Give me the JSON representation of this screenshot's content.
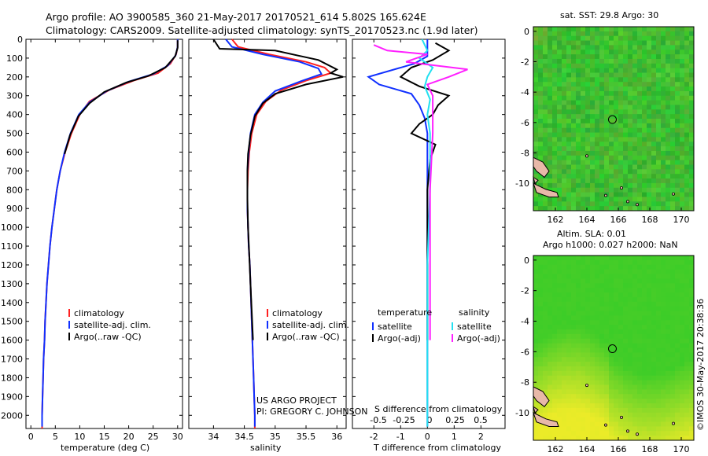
{
  "header": {
    "line1": "Argo profile: AO 3900585_360 21-May-2017 20170521_614 5.802S 165.624E",
    "line2": "Climatology: CARS2009. Satellite-adjusted climatology: synTS_20170523.nc (1.9d later)"
  },
  "colors": {
    "climatology": "#ff2020",
    "satellite": "#1030ff",
    "argo": "#000000",
    "sat_salinity": "#22e0f0",
    "argo_salinity": "#ff20ff",
    "land": "#e8b8a8"
  },
  "chart_data": [
    {
      "type": "line",
      "id": "temperature",
      "xlabel": "temperature (deg C)",
      "xlim": [
        -1,
        31
      ],
      "ylim": [
        2070,
        0
      ],
      "xticks": [
        0,
        5,
        10,
        15,
        20,
        25,
        30
      ],
      "yticks": [
        0,
        100,
        200,
        300,
        400,
        500,
        600,
        700,
        800,
        900,
        1000,
        1100,
        1200,
        1300,
        1400,
        1500,
        1600,
        1700,
        1800,
        1900,
        2000
      ],
      "legend": [
        "climatology",
        "satellite-adj. clim.",
        "Argo(..raw -QC)"
      ],
      "series": [
        {
          "name": "climatology",
          "color": "#ff2020",
          "points": [
            [
              30,
              0
            ],
            [
              30,
              40
            ],
            [
              29.7,
              80
            ],
            [
              28.5,
              130
            ],
            [
              26,
              180
            ],
            [
              21,
              220
            ],
            [
              16,
              270
            ],
            [
              12,
              330
            ],
            [
              10,
              400
            ],
            [
              8.3,
              500
            ],
            [
              7,
              600
            ],
            [
              6,
              700
            ],
            [
              5.3,
              800
            ],
            [
              4.8,
              900
            ],
            [
              4.3,
              1000
            ],
            [
              3.9,
              1100
            ],
            [
              3.6,
              1200
            ],
            [
              3.3,
              1300
            ],
            [
              3.1,
              1400
            ],
            [
              2.9,
              1500
            ],
            [
              2.8,
              1600
            ],
            [
              2.6,
              1700
            ],
            [
              2.5,
              1800
            ],
            [
              2.4,
              1900
            ],
            [
              2.3,
              2000
            ],
            [
              2.3,
              2070
            ]
          ]
        },
        {
          "name": "satellite-adj. clim.",
          "color": "#1030ff",
          "points": [
            [
              30,
              0
            ],
            [
              30,
              40
            ],
            [
              29.6,
              85
            ],
            [
              28,
              140
            ],
            [
              25,
              185
            ],
            [
              20,
              225
            ],
            [
              15.5,
              275
            ],
            [
              12,
              335
            ],
            [
              9.8,
              400
            ],
            [
              8.1,
              500
            ],
            [
              6.9,
              600
            ],
            [
              6,
              700
            ],
            [
              5.3,
              800
            ],
            [
              4.8,
              900
            ],
            [
              4.3,
              1000
            ],
            [
              3.9,
              1100
            ],
            [
              3.6,
              1200
            ],
            [
              3.3,
              1300
            ],
            [
              3.1,
              1400
            ],
            [
              2.9,
              1500
            ],
            [
              2.8,
              1600
            ],
            [
              2.6,
              1700
            ],
            [
              2.5,
              1800
            ],
            [
              2.4,
              1900
            ],
            [
              2.3,
              2000
            ],
            [
              2.3,
              2060
            ]
          ]
        },
        {
          "name": "Argo(..raw -QC)",
          "color": "#000000",
          "points": [
            [
              30,
              5
            ],
            [
              30,
              45
            ],
            [
              29.5,
              90
            ],
            [
              27.5,
              150
            ],
            [
              24,
              195
            ],
            [
              19.5,
              230
            ],
            [
              15,
              280
            ],
            [
              12,
              340
            ],
            [
              9.7,
              410
            ],
            [
              8,
              510
            ],
            [
              6.9,
              610
            ]
          ]
        }
      ]
    },
    {
      "type": "line",
      "id": "salinity",
      "xlabel": "salinity",
      "xlim": [
        33.6,
        36.15
      ],
      "ylim": [
        2070,
        0
      ],
      "xticks": [
        34,
        34.5,
        35,
        35.5,
        36
      ],
      "legend": [
        "climatology",
        "satellite-adj. clim.",
        "Argo(..raw -QC)"
      ],
      "footer_line1": "US ARGO PROJECT",
      "footer_line2": "PI: GREGORY C. JOHNSON",
      "series": [
        {
          "name": "climatology",
          "color": "#ff2020",
          "points": [
            [
              34.3,
              0
            ],
            [
              34.4,
              40
            ],
            [
              34.9,
              80
            ],
            [
              35.5,
              120
            ],
            [
              35.8,
              150
            ],
            [
              35.9,
              180
            ],
            [
              35.5,
              220
            ],
            [
              35.1,
              270
            ],
            [
              34.85,
              330
            ],
            [
              34.7,
              400
            ],
            [
              34.62,
              500
            ],
            [
              34.58,
              600
            ],
            [
              34.56,
              700
            ],
            [
              34.55,
              800
            ],
            [
              34.55,
              900
            ],
            [
              34.56,
              1000
            ],
            [
              34.57,
              1100
            ],
            [
              34.59,
              1200
            ],
            [
              34.6,
              1300
            ],
            [
              34.61,
              1400
            ],
            [
              34.62,
              1500
            ],
            [
              34.63,
              1600
            ],
            [
              34.64,
              1700
            ],
            [
              34.65,
              1800
            ],
            [
              34.66,
              1900
            ],
            [
              34.67,
              2000
            ],
            [
              34.67,
              2070
            ]
          ]
        },
        {
          "name": "satellite-adj. clim.",
          "color": "#1030ff",
          "points": [
            [
              34.2,
              0
            ],
            [
              34.3,
              40
            ],
            [
              34.8,
              80
            ],
            [
              35.4,
              120
            ],
            [
              35.7,
              155
            ],
            [
              35.75,
              185
            ],
            [
              35.4,
              225
            ],
            [
              35.0,
              275
            ],
            [
              34.8,
              335
            ],
            [
              34.67,
              400
            ],
            [
              34.6,
              500
            ],
            [
              34.57,
              600
            ],
            [
              34.55,
              700
            ],
            [
              34.55,
              800
            ],
            [
              34.55,
              900
            ],
            [
              34.56,
              1000
            ],
            [
              34.57,
              1100
            ],
            [
              34.59,
              1200
            ],
            [
              34.6,
              1300
            ],
            [
              34.61,
              1400
            ],
            [
              34.62,
              1500
            ],
            [
              34.63,
              1600
            ],
            [
              34.64,
              1700
            ],
            [
              34.65,
              1800
            ],
            [
              34.66,
              1900
            ],
            [
              34.67,
              2000
            ],
            [
              34.67,
              2060
            ]
          ]
        },
        {
          "name": "Argo(..raw -QC)",
          "color": "#000000",
          "points": [
            [
              34.0,
              0
            ],
            [
              34.1,
              50
            ],
            [
              35.0,
              60
            ],
            [
              35.7,
              110
            ],
            [
              36.0,
              160
            ],
            [
              35.9,
              180
            ],
            [
              36.1,
              200
            ],
            [
              35.5,
              240
            ],
            [
              35.0,
              290
            ],
            [
              34.8,
              340
            ],
            [
              34.67,
              410
            ],
            [
              34.6,
              510
            ],
            [
              34.56,
              610
            ],
            [
              34.55,
              700
            ],
            [
              34.55,
              850
            ],
            [
              34.56,
              1000
            ],
            [
              34.58,
              1150
            ],
            [
              34.6,
              1300
            ],
            [
              34.62,
              1450
            ],
            [
              34.64,
              1600
            ]
          ]
        }
      ]
    },
    {
      "type": "line",
      "id": "difference",
      "xlabel_top": "S difference from climatology",
      "xlabel": "T difference from climatology",
      "xlim": [
        -2.8,
        2.9
      ],
      "ylim": [
        2070,
        0
      ],
      "xticks": [
        -2,
        -1,
        0,
        1,
        2
      ],
      "xticks_top": [
        "-0.5",
        "-0.25",
        "0",
        "0.25",
        "0.5"
      ],
      "legend_temperature_title": "temperature",
      "legend_salinity_title": "salinity",
      "legend_temperature": [
        "satellite",
        "Argo(-adj)"
      ],
      "legend_salinity": [
        "satellite",
        "Argo(-adj)"
      ],
      "series": [
        {
          "name": "temperature satellite",
          "color": "#1030ff",
          "points": [
            [
              0,
              0
            ],
            [
              0,
              90
            ],
            [
              -0.5,
              130
            ],
            [
              -2.2,
              200
            ],
            [
              -1.8,
              240
            ],
            [
              -0.6,
              290
            ],
            [
              -0.3,
              350
            ],
            [
              -0.1,
              420
            ],
            [
              0,
              500
            ],
            [
              0,
              800
            ],
            [
              0,
              2060
            ]
          ]
        },
        {
          "name": "temperature Argo(-adj)",
          "color": "#000000",
          "points": [
            [
              0.3,
              20
            ],
            [
              0.8,
              60
            ],
            [
              0.2,
              110
            ],
            [
              -0.6,
              150
            ],
            [
              -1,
              200
            ],
            [
              -0.3,
              250
            ],
            [
              0.8,
              300
            ],
            [
              0.4,
              350
            ],
            [
              0.2,
              400
            ],
            [
              -0.3,
              450
            ],
            [
              -0.6,
              500
            ],
            [
              0.3,
              560
            ],
            [
              0.1,
              640
            ],
            [
              0,
              800
            ],
            [
              0,
              1000
            ],
            [
              0,
              1200
            ],
            [
              0,
              1400
            ],
            [
              0,
              1600
            ]
          ]
        },
        {
          "name": "salinity satellite",
          "color": "#22e0f0",
          "points": [
            [
              -0.2,
              0
            ],
            [
              0,
              60
            ],
            [
              -0.3,
              100
            ],
            [
              0.2,
              150
            ],
            [
              0,
              200
            ],
            [
              -0.1,
              250
            ],
            [
              0.1,
              320
            ],
            [
              0,
              400
            ],
            [
              0.1,
              500
            ],
            [
              0.1,
              800
            ],
            [
              0,
              1200
            ],
            [
              0,
              2060
            ]
          ]
        },
        {
          "name": "salinity Argo(-adj)",
          "color": "#ff20ff",
          "points": [
            [
              -2,
              30
            ],
            [
              -1.5,
              60
            ],
            [
              0,
              80
            ],
            [
              -0.8,
              120
            ],
            [
              1.5,
              160
            ],
            [
              0.8,
              200
            ],
            [
              0,
              240
            ],
            [
              0.2,
              300
            ],
            [
              0.2,
              500
            ],
            [
              0.1,
              800
            ],
            [
              0.1,
              1100
            ],
            [
              0.1,
              1400
            ],
            [
              0.1,
              1600
            ]
          ]
        }
      ]
    },
    {
      "type": "heatmap",
      "id": "sst-map",
      "title": "sat. SST: 29.8 Argo: 30",
      "xticks": [
        162,
        164,
        166,
        168,
        170
      ],
      "yticks": [
        0,
        -2,
        -4,
        -6,
        -8,
        -10
      ],
      "xlim": [
        160.6,
        170.8
      ],
      "ylim": [
        -11.8,
        0.3
      ],
      "marker": {
        "lon": 165.624,
        "lat": -5.802
      }
    },
    {
      "type": "heatmap",
      "id": "sla-map",
      "title_line1": "Altim. SLA: 0.01",
      "title_line2": "Argo h1000: 0.027 h2000: NaN",
      "xticks": [
        162,
        164,
        166,
        168,
        170
      ],
      "yticks": [
        0,
        -2,
        -4,
        -6,
        -8,
        -10
      ],
      "xlim": [
        160.6,
        170.8
      ],
      "ylim": [
        -11.8,
        0.3
      ],
      "marker": {
        "lon": 165.624,
        "lat": -5.802
      }
    }
  ],
  "footer_side": "©IMOS 30-May-2017 20:38:36"
}
